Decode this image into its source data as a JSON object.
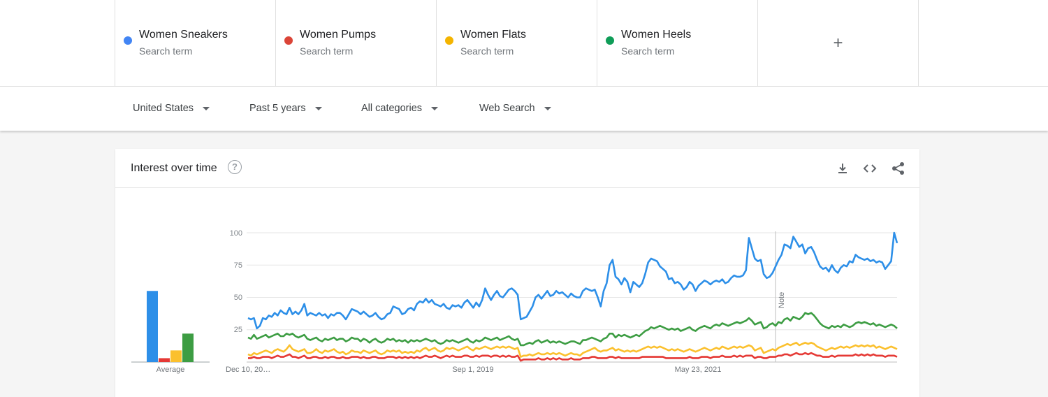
{
  "terms": [
    {
      "name": "Women Sneakers",
      "sub": "Search term",
      "color": "#4285f4"
    },
    {
      "name": "Women Pumps",
      "sub": "Search term",
      "color": "#db4437"
    },
    {
      "name": "Women Flats",
      "sub": "Search term",
      "color": "#f4b400"
    },
    {
      "name": "Women Heels",
      "sub": "Search term",
      "color": "#0f9d58"
    }
  ],
  "add_term_label": "+",
  "filters": [
    {
      "label": "United States"
    },
    {
      "label": "Past 5 years"
    },
    {
      "label": "All categories"
    },
    {
      "label": "Web Search"
    }
  ],
  "card": {
    "title": "Interest over time",
    "help_label": "?",
    "icons": [
      "download-icon",
      "embed-icon",
      "share-icon"
    ]
  },
  "chart_data": {
    "type": "line",
    "x_tick_labels": [
      "Dec 10, 20…",
      "Sep 1, 2019",
      "May 23, 2021"
    ],
    "y_ticks": [
      25,
      50,
      75,
      100
    ],
    "ylim": [
      0,
      100
    ],
    "note_label": "Note",
    "averages": {
      "label": "Average",
      "values": [
        55,
        3,
        9,
        22
      ]
    },
    "series": [
      {
        "name": "Women Sneakers",
        "color": "#2d8fe8",
        "values": [
          34,
          33,
          34,
          26,
          28,
          34,
          33,
          36,
          35,
          38,
          36,
          40,
          38,
          37,
          42,
          37,
          39,
          37,
          40,
          45,
          36,
          38,
          37,
          36,
          38,
          36,
          37,
          34,
          37,
          36,
          38,
          38,
          36,
          33,
          37,
          41,
          40,
          39,
          37,
          39,
          37,
          35,
          36,
          38,
          35,
          33,
          34,
          37,
          38,
          43,
          42,
          41,
          37,
          38,
          41,
          42,
          40,
          45,
          47,
          46,
          49,
          46,
          48,
          45,
          44,
          43,
          45,
          42,
          41,
          44,
          43,
          44,
          42,
          46,
          48,
          45,
          42,
          46,
          43,
          48,
          57,
          52,
          48,
          52,
          55,
          51,
          50,
          53,
          56,
          57,
          55,
          52,
          33,
          34,
          35,
          39,
          43,
          50,
          52,
          49,
          52,
          55,
          51,
          52,
          55,
          53,
          54,
          52,
          50,
          53,
          51,
          50,
          50,
          55,
          57,
          56,
          55,
          56,
          50,
          43,
          55,
          61,
          75,
          79,
          66,
          64,
          60,
          65,
          62,
          54,
          62,
          60,
          58,
          61,
          68,
          77,
          80,
          79,
          78,
          74,
          72,
          70,
          64,
          65,
          61,
          62,
          60,
          56,
          58,
          62,
          60,
          55,
          59,
          61,
          63,
          62,
          60,
          62,
          63,
          62,
          64,
          61,
          62,
          65,
          67,
          66,
          66,
          67,
          71,
          96,
          88,
          80,
          78,
          79,
          68,
          65,
          66,
          69,
          74,
          79,
          83,
          91,
          90,
          88,
          97,
          93,
          89,
          91,
          84,
          88,
          89,
          85,
          79,
          74,
          72,
          73,
          70,
          75,
          71,
          69,
          73,
          75,
          74,
          78,
          77,
          83,
          81,
          80,
          79,
          80,
          78,
          79,
          77,
          78,
          77,
          72,
          75,
          78,
          100,
          92
        ]
      },
      {
        "name": "Women Heels",
        "color": "#3d9d43",
        "values": [
          19,
          18,
          21,
          18,
          19,
          20,
          21,
          19,
          20,
          21,
          22,
          20,
          20,
          22,
          21,
          22,
          20,
          19,
          20,
          21,
          18,
          17,
          18,
          19,
          17,
          16,
          18,
          17,
          18,
          19,
          17,
          18,
          18,
          16,
          17,
          19,
          18,
          18,
          16,
          18,
          17,
          15,
          17,
          18,
          16,
          15,
          16,
          18,
          17,
          18,
          16,
          17,
          16,
          17,
          15,
          17,
          16,
          17,
          16,
          17,
          18,
          17,
          16,
          17,
          15,
          14,
          15,
          17,
          16,
          17,
          16,
          15,
          16,
          17,
          18,
          16,
          15,
          17,
          16,
          17,
          19,
          18,
          17,
          18,
          19,
          17,
          18,
          19,
          20,
          18,
          17,
          18,
          13,
          13,
          14,
          15,
          14,
          16,
          17,
          15,
          16,
          17,
          15,
          16,
          15,
          16,
          15,
          14,
          15,
          16,
          16,
          15,
          14,
          17,
          17,
          18,
          19,
          18,
          17,
          16,
          18,
          19,
          22,
          22,
          19,
          21,
          20,
          21,
          20,
          19,
          20,
          21,
          20,
          22,
          24,
          25,
          27,
          26,
          27,
          28,
          27,
          26,
          25,
          26,
          25,
          26,
          24,
          25,
          26,
          27,
          25,
          24,
          26,
          27,
          28,
          27,
          26,
          28,
          29,
          28,
          30,
          29,
          28,
          29,
          30,
          31,
          30,
          31,
          32,
          34,
          32,
          29,
          30,
          31,
          26,
          27,
          29,
          30,
          28,
          31,
          30,
          33,
          34,
          32,
          35,
          34,
          33,
          35,
          38,
          37,
          38,
          36,
          33,
          30,
          28,
          27,
          26,
          28,
          27,
          28,
          27,
          29,
          28,
          27,
          28,
          30,
          31,
          30,
          31,
          30,
          29,
          30,
          28,
          29,
          28,
          27,
          28,
          29,
          28,
          26
        ]
      },
      {
        "name": "Women Flats",
        "color": "#fbc02d",
        "values": [
          6,
          5,
          7,
          6,
          7,
          8,
          9,
          8,
          7,
          9,
          10,
          9,
          8,
          10,
          13,
          10,
          9,
          8,
          9,
          10,
          7,
          7,
          8,
          10,
          8,
          7,
          9,
          8,
          9,
          10,
          8,
          7,
          8,
          6,
          7,
          9,
          8,
          8,
          7,
          9,
          8,
          7,
          8,
          9,
          7,
          6,
          7,
          9,
          8,
          9,
          8,
          9,
          7,
          8,
          7,
          8,
          7,
          9,
          8,
          10,
          11,
          9,
          10,
          11,
          9,
          8,
          9,
          11,
          10,
          11,
          10,
          9,
          10,
          11,
          12,
          10,
          9,
          11,
          10,
          11,
          12,
          11,
          10,
          11,
          12,
          11,
          12,
          11,
          12,
          11,
          10,
          11,
          4,
          5,
          5,
          6,
          5,
          6,
          7,
          6,
          6,
          7,
          6,
          7,
          6,
          7,
          6,
          5,
          6,
          7,
          6,
          6,
          5,
          7,
          8,
          9,
          10,
          11,
          9,
          8,
          9,
          9,
          10,
          11,
          9,
          10,
          9,
          8,
          9,
          8,
          9,
          8,
          9,
          10,
          11,
          12,
          11,
          12,
          11,
          12,
          11,
          10,
          9,
          10,
          9,
          10,
          9,
          8,
          9,
          10,
          9,
          8,
          9,
          10,
          11,
          10,
          9,
          10,
          11,
          10,
          12,
          11,
          10,
          11,
          12,
          11,
          12,
          11,
          12,
          13,
          12,
          9,
          10,
          11,
          7,
          8,
          9,
          10,
          9,
          11,
          12,
          13,
          14,
          13,
          14,
          15,
          13,
          14,
          15,
          14,
          15,
          14,
          12,
          11,
          10,
          9,
          10,
          11,
          10,
          11,
          12,
          11,
          12,
          11,
          12,
          13,
          12,
          13,
          12,
          13,
          12,
          13,
          11,
          12,
          11,
          10,
          11,
          12,
          11,
          10
        ]
      },
      {
        "name": "Women Pumps",
        "color": "#e53935",
        "values": [
          3,
          3,
          4,
          3,
          3,
          4,
          4,
          4,
          3,
          4,
          5,
          4,
          4,
          5,
          6,
          4,
          4,
          3,
          4,
          5,
          3,
          3,
          4,
          4,
          3,
          3,
          4,
          3,
          4,
          4,
          3,
          3,
          4,
          3,
          3,
          4,
          4,
          4,
          3,
          4,
          3,
          3,
          4,
          4,
          3,
          3,
          3,
          4,
          4,
          4,
          3,
          4,
          3,
          4,
          3,
          4,
          3,
          4,
          3,
          4,
          5,
          4,
          4,
          5,
          4,
          3,
          4,
          5,
          4,
          5,
          4,
          4,
          4,
          5,
          5,
          4,
          4,
          5,
          4,
          5,
          5,
          5,
          4,
          5,
          5,
          4,
          5,
          4,
          5,
          4,
          4,
          5,
          1,
          2,
          2,
          2,
          2,
          2,
          3,
          2,
          2,
          3,
          2,
          3,
          2,
          3,
          2,
          2,
          2,
          3,
          2,
          2,
          2,
          3,
          3,
          3,
          4,
          4,
          3,
          3,
          3,
          3,
          4,
          4,
          3,
          4,
          3,
          3,
          3,
          3,
          3,
          3,
          3,
          4,
          4,
          4,
          4,
          4,
          4,
          4,
          4,
          3,
          3,
          3,
          3,
          3,
          3,
          3,
          3,
          4,
          3,
          3,
          3,
          4,
          4,
          4,
          3,
          4,
          4,
          4,
          5,
          4,
          4,
          4,
          5,
          4,
          5,
          4,
          5,
          5,
          5,
          3,
          4,
          4,
          3,
          3,
          4,
          4,
          4,
          5,
          5,
          6,
          6,
          5,
          6,
          7,
          6,
          6,
          7,
          6,
          7,
          6,
          5,
          5,
          4,
          4,
          4,
          5,
          4,
          5,
          5,
          5,
          5,
          5,
          5,
          6,
          5,
          6,
          5,
          6,
          5,
          6,
          5,
          5,
          5,
          4,
          5,
          5,
          5,
          4
        ]
      }
    ]
  }
}
